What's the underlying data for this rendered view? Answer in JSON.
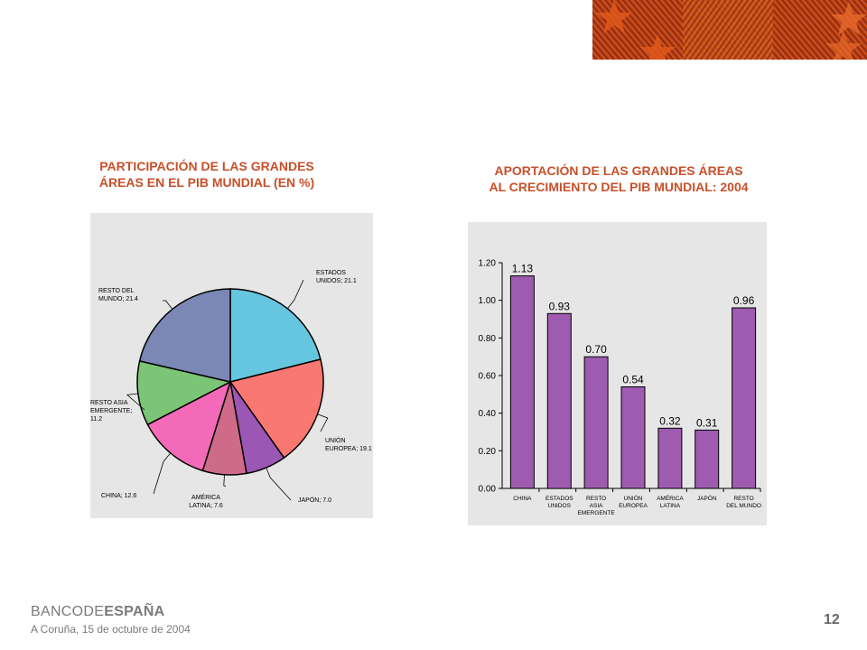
{
  "footer": {
    "logo_part1": "BANCO",
    "logo_part2": "DE",
    "logo_part3": "ESPAÑA",
    "date": "A Coruña,  15 de octubre de  2004",
    "page_number": "12"
  },
  "colors": {
    "title": "#c8502a",
    "bar": "#9e5bb0",
    "banner": "#c84a1a"
  },
  "chart_data": [
    {
      "type": "pie",
      "title_line1": "PARTICIPACIÓN DE LAS GRANDES",
      "title_line2": "ÁREAS EN EL PIB MUNDIAL (EN %)",
      "slices": [
        {
          "label": [
            "ESTADOS",
            "UNIDOS; 21.1"
          ],
          "value": 21.1,
          "color": "#67c6df"
        },
        {
          "label": [
            "UNIÓN",
            "EUROPEA; 19.1"
          ],
          "value": 19.1,
          "color": "#fa7872"
        },
        {
          "label": [
            "JAPÓN; 7.0"
          ],
          "value": 7.0,
          "color": "#9c56b4"
        },
        {
          "label": [
            "AMÉRICA",
            "LATINA; 7.6"
          ],
          "value": 7.6,
          "color": "#cf6b88"
        },
        {
          "label": [
            "CHINA; 12.6"
          ],
          "value": 12.6,
          "color": "#f36bb8"
        },
        {
          "label": [
            "RESTO ASIA",
            "EMERGENTE;",
            "11.2"
          ],
          "value": 11.2,
          "color": "#7cc576"
        },
        {
          "label": [
            "RESTO DEL",
            "MUNDO; 21.4"
          ],
          "value": 21.4,
          "color": "#7b87b4"
        }
      ]
    },
    {
      "type": "bar",
      "title_line1": "APORTACIÓN DE LAS GRANDES ÁREAS",
      "title_line2": "AL CRECIMIENTO DEL PIB MUNDIAL: 2004",
      "categories": [
        [
          "CHINA"
        ],
        [
          "ESTADOS",
          "UNIDOS"
        ],
        [
          "RESTO",
          "ASIA",
          "EMERGENTE"
        ],
        [
          "UNIÓN",
          "EUROPEA"
        ],
        [
          "AMÉRICA",
          "LATINA"
        ],
        [
          "JAPÓN"
        ],
        [
          "RESTO",
          "DEL MUNDO"
        ]
      ],
      "values": [
        1.13,
        0.93,
        0.7,
        0.54,
        0.32,
        0.31,
        0.96
      ],
      "value_labels": [
        "1.13",
        "0.93",
        "0.70",
        "0.54",
        "0.32",
        "0.31",
        "0.96"
      ],
      "y_ticks": [
        "0.00",
        "0.20",
        "0.40",
        "0.60",
        "0.80",
        "1.00",
        "1.20"
      ],
      "ylim": [
        0,
        1.2
      ]
    }
  ]
}
